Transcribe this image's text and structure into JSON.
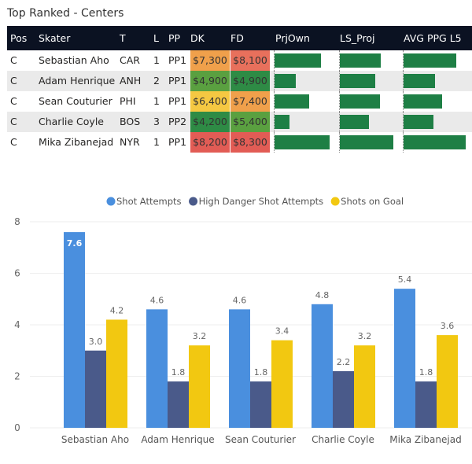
{
  "title": "Top Ranked - Centers",
  "table": {
    "columns": [
      "Pos",
      "Skater",
      "T",
      "L",
      "PP",
      "DK",
      "FD",
      "PrjOwn",
      "LS_Proj",
      "AVG PPG L5"
    ],
    "rows": [
      {
        "pos": "C",
        "skater": "Sebastian Aho",
        "team": "CAR",
        "line": "1",
        "pp": "PP1",
        "dk": "$7,300",
        "fd": "$8,100",
        "dk_color": "#f0a04b",
        "fd_color": "#e8705c",
        "prjown": 0.84,
        "ls_proj": 0.76,
        "avg_ppg": 0.85
      },
      {
        "pos": "C",
        "skater": "Adam Henrique",
        "team": "ANH",
        "line": "2",
        "pp": "PP1",
        "dk": "$4,900",
        "fd": "$4,900",
        "dk_color": "#5aa040",
        "fd_color": "#2e8b45",
        "prjown": 0.39,
        "ls_proj": 0.66,
        "avg_ppg": 0.51
      },
      {
        "pos": "C",
        "skater": "Sean Couturier",
        "team": "PHI",
        "line": "1",
        "pp": "PP1",
        "dk": "$6,400",
        "fd": "$7,400",
        "dk_color": "#f5c842",
        "fd_color": "#f0a04b",
        "prjown": 0.63,
        "ls_proj": 0.75,
        "avg_ppg": 0.62
      },
      {
        "pos": "C",
        "skater": "Charlie Coyle",
        "team": "BOS",
        "line": "3",
        "pp": "PP2",
        "dk": "$4,200",
        "fd": "$5,400",
        "dk_color": "#2e8b45",
        "fd_color": "#5aa040",
        "prjown": 0.27,
        "ls_proj": 0.54,
        "avg_ppg": 0.48
      },
      {
        "pos": "C",
        "skater": "Mika Zibanejad",
        "team": "NYR",
        "line": "1",
        "pp": "PP1",
        "dk": "$8,200",
        "fd": "$8,300",
        "dk_color": "#e25c55",
        "fd_color": "#e25c55",
        "prjown": 1.0,
        "ls_proj": 1.0,
        "avg_ppg": 1.0
      }
    ],
    "bar_color": "#1e7f45"
  },
  "chart_data": {
    "type": "bar",
    "categories": [
      "Sebastian Aho",
      "Adam Henrique",
      "Sean Couturier",
      "Charlie Coyle",
      "Mika Zibanejad"
    ],
    "series": [
      {
        "name": "Shot Attempts",
        "color": "#4a8fde",
        "values": [
          7.6,
          4.6,
          4.6,
          4.8,
          5.4
        ],
        "labels": [
          "7.6",
          "4.6",
          "4.6",
          "4.8",
          "5.4"
        ]
      },
      {
        "name": "High Danger Shot Attempts",
        "color": "#4a5a8a",
        "values": [
          3.0,
          1.8,
          1.8,
          2.2,
          1.8
        ],
        "labels": [
          "3.0",
          "1.8",
          "1.8",
          "2.2",
          "1.8"
        ]
      },
      {
        "name": "Shots on Goal",
        "color": "#f2c811",
        "values": [
          4.2,
          3.2,
          3.4,
          3.2,
          3.6
        ],
        "labels": [
          "4.2",
          "3.2",
          "3.4",
          "3.2",
          "3.6"
        ]
      }
    ],
    "yticks": [
      "0",
      "2",
      "4",
      "6",
      "8"
    ],
    "ylim": [
      0,
      8
    ],
    "grid": true,
    "legend": "top-center"
  }
}
